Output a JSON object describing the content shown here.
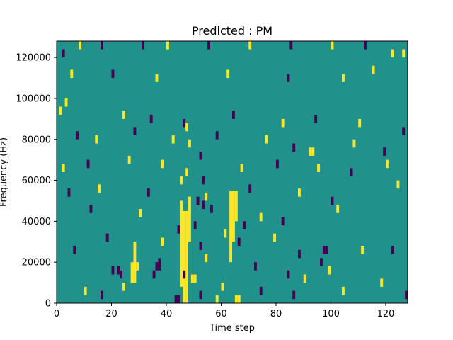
{
  "chart_data": {
    "type": "heatmap",
    "title": "Predicted : PM",
    "xlabel": "Time step",
    "ylabel": "Frequency (Hz)",
    "xlim": [
      0,
      128
    ],
    "ylim": [
      0,
      128000
    ],
    "xticks": [
      0,
      20,
      40,
      60,
      80,
      100,
      120
    ],
    "yticks": [
      0,
      20000,
      40000,
      60000,
      80000,
      100000,
      120000
    ],
    "colormap": "viridis",
    "value_levels": [
      -1,
      0,
      1
    ],
    "background_value": 0,
    "colors": {
      "-1": "#440154",
      "0": "#21918c",
      "1": "#fde725"
    },
    "cells_note": "cells listed as [time_step, frequency_bin_start_Hz, frequency_bin_end_Hz, value]; all other cells have background_value",
    "cells": [
      [
        46,
        0,
        45000,
        1
      ],
      [
        47,
        0,
        45000,
        1
      ],
      [
        45,
        8000,
        50000,
        1
      ],
      [
        48,
        30000,
        52000,
        1
      ],
      [
        27,
        10000,
        20000,
        1
      ],
      [
        28,
        10000,
        30000,
        1
      ],
      [
        29,
        16000,
        20000,
        1
      ],
      [
        63,
        20000,
        55000,
        1
      ],
      [
        64,
        30000,
        55000,
        1
      ],
      [
        65,
        40000,
        55000,
        1
      ],
      [
        43,
        0,
        4000,
        -1
      ],
      [
        44,
        0,
        4000,
        -1
      ],
      [
        58,
        0,
        4000,
        1
      ],
      [
        65,
        0,
        4000,
        1
      ],
      [
        66,
        0,
        4000,
        1
      ],
      [
        49,
        10000,
        14000,
        1
      ],
      [
        50,
        10000,
        14000,
        1
      ],
      [
        46,
        12000,
        16000,
        -1
      ],
      [
        22,
        14000,
        18000,
        -1
      ],
      [
        23,
        12000,
        16000,
        -1
      ],
      [
        35,
        12000,
        16000,
        -1
      ],
      [
        36,
        16000,
        20000,
        -1
      ],
      [
        37,
        16000,
        22000,
        -1
      ],
      [
        90,
        10000,
        14000,
        1
      ],
      [
        96,
        18000,
        22000,
        -1
      ],
      [
        97,
        24000,
        28000,
        -1
      ],
      [
        98,
        24000,
        28000,
        -1
      ],
      [
        2,
        120000,
        124000,
        -1
      ],
      [
        8,
        124000,
        128000,
        1
      ],
      [
        16,
        124000,
        128000,
        -1
      ],
      [
        31,
        124000,
        128000,
        -1
      ],
      [
        40,
        124000,
        128000,
        1
      ],
      [
        55,
        124000,
        128000,
        -1
      ],
      [
        70,
        124000,
        128000,
        1
      ],
      [
        85,
        124000,
        128000,
        -1
      ],
      [
        100,
        124000,
        128000,
        1
      ],
      [
        112,
        124000,
        128000,
        -1
      ],
      [
        122,
        120000,
        124000,
        1
      ],
      [
        126,
        120000,
        124000,
        1
      ],
      [
        5,
        110000,
        114000,
        1
      ],
      [
        20,
        110000,
        114000,
        -1
      ],
      [
        36,
        108000,
        112000,
        1
      ],
      [
        62,
        110000,
        114000,
        1
      ],
      [
        84,
        108000,
        112000,
        -1
      ],
      [
        104,
        108000,
        112000,
        1
      ],
      [
        115,
        112000,
        116000,
        1
      ],
      [
        3,
        96000,
        100000,
        1
      ],
      [
        1,
        92000,
        96000,
        1
      ],
      [
        24,
        90000,
        94000,
        1
      ],
      [
        34,
        88000,
        92000,
        -1
      ],
      [
        46,
        86000,
        90000,
        -1
      ],
      [
        64,
        90000,
        94000,
        -1
      ],
      [
        82,
        86000,
        90000,
        1
      ],
      [
        94,
        88000,
        92000,
        -1
      ],
      [
        110,
        86000,
        90000,
        1
      ],
      [
        126,
        82000,
        86000,
        -1
      ],
      [
        7,
        80000,
        84000,
        -1
      ],
      [
        14,
        78000,
        82000,
        1
      ],
      [
        28,
        82000,
        86000,
        -1
      ],
      [
        42,
        78000,
        82000,
        1
      ],
      [
        58,
        80000,
        84000,
        -1
      ],
      [
        76,
        78000,
        82000,
        1
      ],
      [
        86,
        74000,
        78000,
        -1
      ],
      [
        92,
        72000,
        76000,
        1
      ],
      [
        93,
        72000,
        76000,
        1
      ],
      [
        108,
        76000,
        80000,
        1
      ],
      [
        119,
        72000,
        76000,
        -1
      ],
      [
        2,
        64000,
        68000,
        1
      ],
      [
        11,
        66000,
        70000,
        -1
      ],
      [
        26,
        68000,
        72000,
        1
      ],
      [
        38,
        66000,
        70000,
        1
      ],
      [
        52,
        70000,
        74000,
        -1
      ],
      [
        67,
        64000,
        68000,
        1
      ],
      [
        80,
        66000,
        70000,
        -1
      ],
      [
        95,
        64000,
        68000,
        1
      ],
      [
        107,
        62000,
        66000,
        -1
      ],
      [
        120,
        66000,
        70000,
        1
      ],
      [
        4,
        52000,
        56000,
        -1
      ],
      [
        15,
        54000,
        58000,
        1
      ],
      [
        33,
        52000,
        56000,
        -1
      ],
      [
        54,
        50000,
        54000,
        1
      ],
      [
        70,
        54000,
        58000,
        -1
      ],
      [
        88,
        52000,
        56000,
        1
      ],
      [
        100,
        48000,
        52000,
        -1
      ],
      [
        124,
        56000,
        60000,
        1
      ],
      [
        12,
        44000,
        48000,
        -1
      ],
      [
        30,
        42000,
        46000,
        1
      ],
      [
        56,
        44000,
        48000,
        -1
      ],
      [
        74,
        40000,
        44000,
        1
      ],
      [
        82,
        38000,
        42000,
        -1
      ],
      [
        102,
        44000,
        48000,
        1
      ],
      [
        18,
        30000,
        34000,
        -1
      ],
      [
        38,
        28000,
        32000,
        1
      ],
      [
        52,
        26000,
        30000,
        -1
      ],
      [
        66,
        28000,
        32000,
        -1
      ],
      [
        79,
        30000,
        34000,
        1
      ],
      [
        88,
        22000,
        26000,
        -1
      ],
      [
        111,
        24000,
        28000,
        1
      ],
      [
        122,
        24000,
        28000,
        -1
      ],
      [
        6,
        24000,
        28000,
        -1
      ],
      [
        20,
        14000,
        18000,
        -1
      ],
      [
        54,
        20000,
        24000,
        1
      ],
      [
        72,
        16000,
        20000,
        -1
      ],
      [
        84,
        12000,
        16000,
        -1
      ],
      [
        99,
        14000,
        18000,
        1
      ],
      [
        10,
        4000,
        8000,
        1
      ],
      [
        16,
        2000,
        6000,
        -1
      ],
      [
        24,
        6000,
        10000,
        1
      ],
      [
        52,
        2000,
        6000,
        -1
      ],
      [
        60,
        6000,
        10000,
        1
      ],
      [
        74,
        4000,
        8000,
        -1
      ],
      [
        86,
        2000,
        6000,
        -1
      ],
      [
        104,
        4000,
        8000,
        1
      ],
      [
        118,
        8000,
        12000,
        1
      ],
      [
        127,
        2000,
        6000,
        -1
      ],
      [
        44,
        34000,
        38000,
        -1
      ],
      [
        50,
        36000,
        40000,
        -1
      ],
      [
        61,
        32000,
        36000,
        1
      ],
      [
        68,
        36000,
        40000,
        -1
      ],
      [
        45,
        58000,
        62000,
        1
      ],
      [
        47,
        62000,
        66000,
        1
      ],
      [
        53,
        58000,
        62000,
        -1
      ],
      [
        47,
        84000,
        88000,
        1
      ],
      [
        48,
        76000,
        80000,
        1
      ],
      [
        51,
        48000,
        52000,
        -1
      ],
      [
        53,
        46000,
        50000,
        -1
      ]
    ]
  }
}
